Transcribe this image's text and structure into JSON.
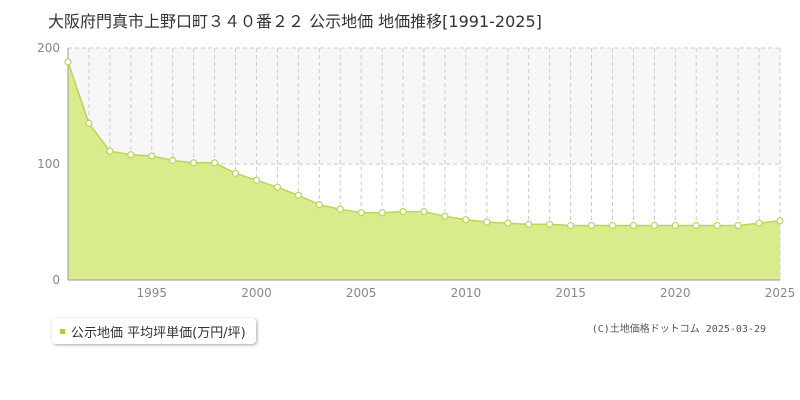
{
  "title": "大阪府門真市上野口町３４０番２２ 公示地価 地価推移[1991-2025]",
  "credit": "(C)土地価格ドットコム 2025-03-29",
  "legend": {
    "label": "公示地価 平均坪単価(万円/坪)"
  },
  "colors": {
    "fill": "#d9ec8c",
    "line": "#b8d65a",
    "point_fill": "#ffffff",
    "point_stroke": "#b8d65a",
    "marker": "#a6d22c",
    "grid": "#cccccc",
    "upper_band": "#f8f6f8",
    "axis": "#999999"
  },
  "chart_data": {
    "type": "area",
    "title": "大阪府門真市上野口町３４０番２２ 公示地価 地価推移[1991-2025]",
    "xlabel": "",
    "ylabel": "",
    "xlim": [
      1991,
      2025
    ],
    "ylim": [
      0,
      200
    ],
    "y_ticks": [
      0,
      100,
      200
    ],
    "x_ticks": [
      1995,
      2000,
      2005,
      2010,
      2015,
      2020,
      2025
    ],
    "grid": true,
    "legend_position": "bottom-left",
    "series": [
      {
        "name": "公示地価 平均坪単価(万円/坪)",
        "x": [
          1991,
          1992,
          1993,
          1994,
          1995,
          1996,
          1997,
          1998,
          1999,
          2000,
          2001,
          2002,
          2003,
          2004,
          2005,
          2006,
          2007,
          2008,
          2009,
          2010,
          2011,
          2012,
          2013,
          2014,
          2015,
          2016,
          2017,
          2018,
          2019,
          2020,
          2021,
          2022,
          2023,
          2024,
          2025
        ],
        "y": [
          188,
          135,
          111,
          108,
          107,
          103,
          101,
          101,
          92,
          86,
          80,
          73,
          65,
          61,
          58,
          58,
          59,
          59,
          55,
          52,
          50,
          49,
          48,
          48,
          47,
          47,
          47,
          47,
          47,
          47,
          47,
          47,
          47,
          49,
          51
        ]
      }
    ]
  }
}
